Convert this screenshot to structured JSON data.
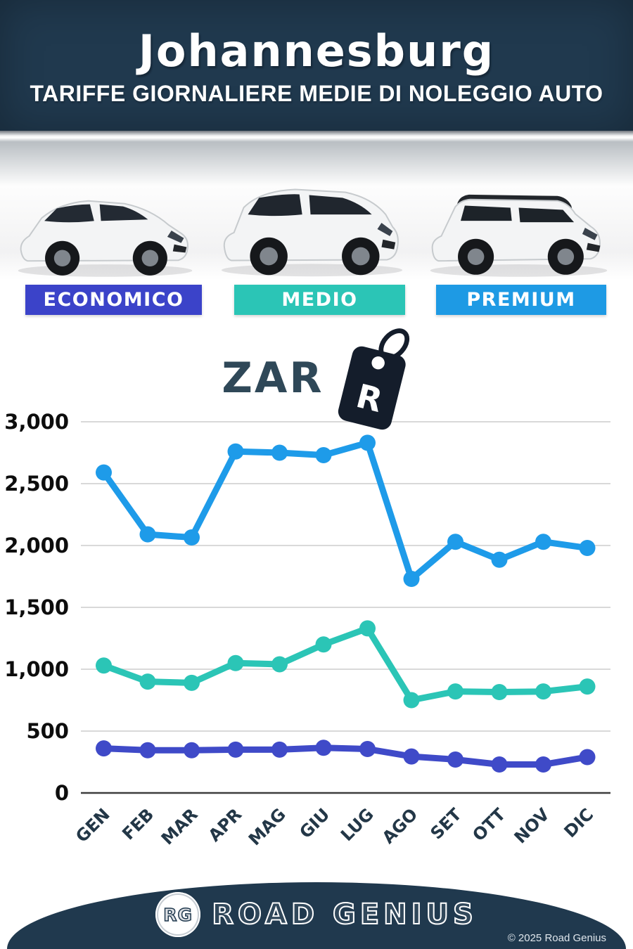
{
  "header": {
    "title": "Johannesburg",
    "subtitle": "TARIFFE GIORNALIERE MEDIE DI NOLEGGIO AUTO"
  },
  "categories": [
    {
      "label": "ECONOMICO",
      "color": "#3B43C9"
    },
    {
      "label": "MEDIO",
      "color": "#2BC5B6"
    },
    {
      "label": "PREMIUM",
      "color": "#1E9AE4"
    }
  ],
  "currency": {
    "code": "ZAR",
    "symbol": "R"
  },
  "colors": {
    "brand_navy": "#20394E",
    "tag_dark": "#141D2B",
    "currency_text": "#2F4858"
  },
  "chart_data": {
    "type": "line",
    "title": "Tariffe giornaliere medie di noleggio auto - Johannesburg (ZAR)",
    "categories": [
      "GEN",
      "FEB",
      "MAR",
      "APR",
      "MAG",
      "GIU",
      "LUG",
      "AGO",
      "SET",
      "OTT",
      "NOV",
      "DIC"
    ],
    "series": [
      {
        "name": "PREMIUM",
        "color": "#1E9BE9",
        "values": [
          2590,
          2090,
          2065,
          2760,
          2750,
          2730,
          2830,
          1730,
          2030,
          1885,
          2030,
          1980
        ]
      },
      {
        "name": "MEDIO",
        "color": "#2BC5B6",
        "values": [
          1030,
          900,
          890,
          1050,
          1040,
          1200,
          1330,
          750,
          820,
          815,
          820,
          860
        ]
      },
      {
        "name": "ECONOMICO",
        "color": "#3F4AC8",
        "values": [
          360,
          345,
          345,
          350,
          350,
          365,
          355,
          295,
          270,
          230,
          230,
          290
        ]
      }
    ],
    "xlabel": "",
    "ylabel": "",
    "ylim": [
      0,
      3000
    ],
    "yticks": [
      0,
      500,
      1000,
      1500,
      2000,
      2500,
      3000
    ],
    "ytick_labels": [
      "0",
      "500",
      "1,000",
      "1,500",
      "2,000",
      "2,500",
      "3,000"
    ],
    "grid": true,
    "legend": false
  },
  "footer": {
    "logo_initials": "RG",
    "brand": "ROAD GENIUS",
    "copyright": "© 2025 Road Genius"
  }
}
